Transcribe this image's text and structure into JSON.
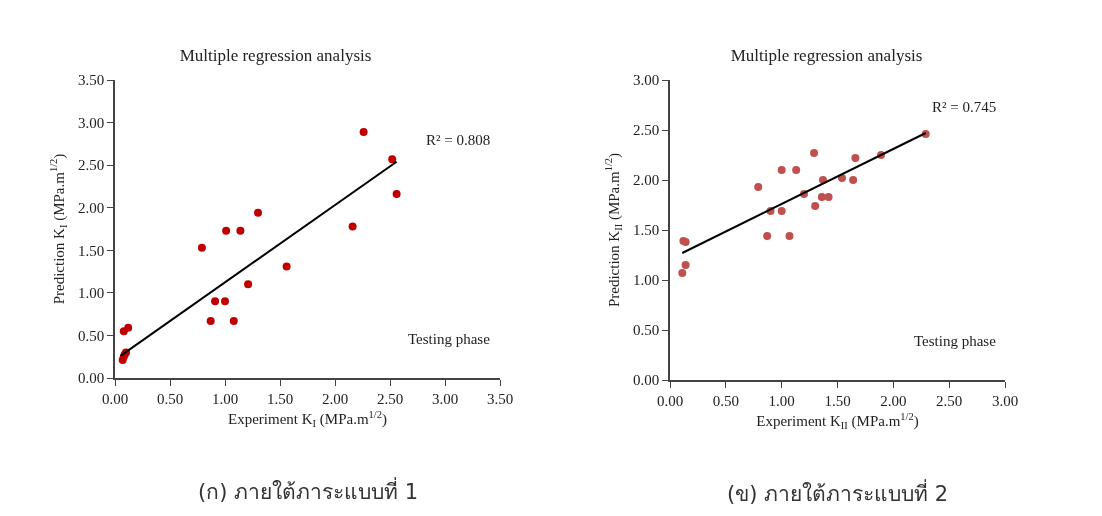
{
  "chart_data": [
    {
      "type": "scatter",
      "title": "Multiple regression analysis",
      "xlabel": "Experiment K$_{I}$ (MPa.m$^{1/2}$)",
      "ylabel": "Prediction K$_{I}$ (MPa.m$^{1/2}$)",
      "x": [
        0.07,
        0.08,
        0.09,
        0.1,
        0.08,
        0.12,
        0.79,
        1.01,
        1.14,
        1.3,
        0.91,
        1.0,
        0.87,
        1.08,
        1.21,
        1.56,
        2.16,
        2.26,
        2.52,
        2.56
      ],
      "series": [
        {
          "color": "#c00000",
          "values": [
            0.21,
            0.25,
            0.28,
            0.3,
            0.55,
            0.59,
            1.53,
            1.73,
            1.73,
            1.94,
            0.9,
            0.9,
            0.67,
            0.67,
            1.1,
            1.31,
            1.78,
            2.89,
            2.57,
            2.16
          ]
        },
        {
          "type": "line",
          "color": "#000000",
          "x": [
            0.05,
            2.56
          ],
          "values": [
            0.26,
            2.54
          ],
          "marker": "none",
          "line_style": "solid"
        }
      ],
      "xlim": [
        0,
        3.5
      ],
      "xticks": [
        {
          "value": 0,
          "label": "0.00"
        },
        {
          "value": 0.5,
          "label": "0.50"
        },
        {
          "value": 1,
          "label": "1.00"
        },
        {
          "value": 1.5,
          "label": "1.50"
        },
        {
          "value": 2,
          "label": "2.00"
        },
        {
          "value": 2.5,
          "label": "2.50"
        },
        {
          "value": 3,
          "label": "3.00"
        },
        {
          "value": 3.5,
          "label": "3.50"
        }
      ],
      "ylim": [
        0,
        3.5
      ],
      "yticks": [
        {
          "value": 0,
          "label": "0.00"
        },
        {
          "value": 0.5,
          "label": "0.50"
        },
        {
          "value": 1,
          "label": "1.00"
        },
        {
          "value": 1.5,
          "label": "1.50"
        },
        {
          "value": 2,
          "label": "2.00"
        },
        {
          "value": 2.5,
          "label": "2.50"
        },
        {
          "value": 3,
          "label": "3.00"
        },
        {
          "value": 3.5,
          "label": "3.50"
        }
      ],
      "grid": false,
      "marker": "circle",
      "annotations": [
        "R² = 0.808",
        "Testing phase",
        "(ก) ภายใต้ภาระแบบที่ 1"
      ]
    },
    {
      "type": "scatter",
      "title": "Multiple regression analysis",
      "xlabel": "Experiment K$_{II}$ (MPa.m$^{1/2}$)",
      "ylabel": "Prediction K$_{II}$ (MPa.m$^{1/2}$)",
      "x": [
        0.11,
        0.14,
        0.12,
        0.14,
        0.79,
        0.87,
        0.9,
        1.0,
        1.0,
        1.07,
        1.13,
        1.2,
        1.29,
        1.3,
        1.36,
        1.37,
        1.42,
        1.54,
        1.64,
        1.66,
        1.89,
        2.29
      ],
      "series": [
        {
          "color": "#c0504d",
          "values": [
            1.07,
            1.15,
            1.39,
            1.38,
            1.93,
            1.44,
            1.69,
            1.69,
            2.1,
            1.44,
            2.1,
            1.86,
            2.27,
            1.74,
            1.83,
            2.0,
            1.83,
            2.02,
            2.0,
            2.22,
            2.25,
            2.46
          ]
        },
        {
          "type": "line",
          "color": "#000000",
          "x": [
            0.11,
            2.29
          ],
          "values": [
            1.27,
            2.47
          ],
          "marker": "none",
          "line_style": "solid"
        }
      ],
      "xlim": [
        0,
        3
      ],
      "xticks": [
        {
          "value": 0,
          "label": "0.00"
        },
        {
          "value": 0.5,
          "label": "0.50"
        },
        {
          "value": 1,
          "label": "1.00"
        },
        {
          "value": 1.5,
          "label": "1.50"
        },
        {
          "value": 2,
          "label": "2.00"
        },
        {
          "value": 2.5,
          "label": "2.50"
        },
        {
          "value": 3,
          "label": "3.00"
        }
      ],
      "ylim": [
        0,
        3
      ],
      "yticks": [
        {
          "value": 0,
          "label": "0.00"
        },
        {
          "value": 0.5,
          "label": "0.50"
        },
        {
          "value": 1,
          "label": "1.00"
        },
        {
          "value": 1.5,
          "label": "1.50"
        },
        {
          "value": 2,
          "label": "2.00"
        },
        {
          "value": 2.5,
          "label": "2.50"
        },
        {
          "value": 3,
          "label": "3.00"
        }
      ],
      "grid": false,
      "marker": "circle",
      "annotations": [
        "R² = 0.745",
        "Testing phase",
        "(ข) ภายใต้ภาระแบบที่ 2"
      ]
    }
  ]
}
